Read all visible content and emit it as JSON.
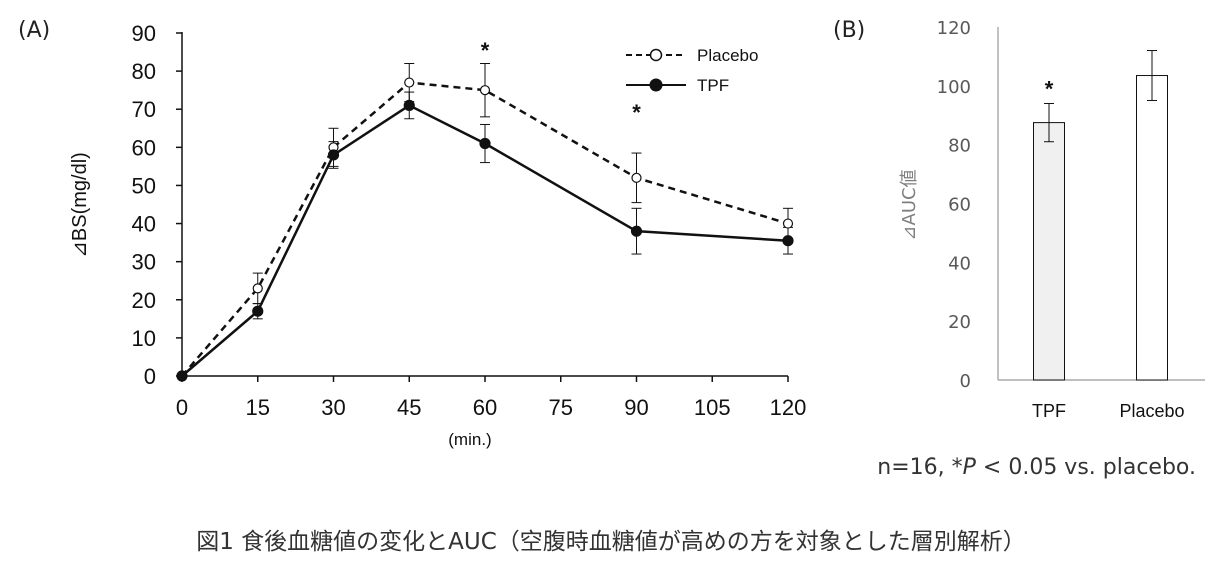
{
  "chart_data": [
    {
      "type": "line",
      "panel_label": "(A)",
      "ylabel": "⊿BS(mg/dl)",
      "xlabel": "(min.)",
      "x": [
        0,
        15,
        30,
        45,
        60,
        90,
        120
      ],
      "xticks": [
        "0",
        "15",
        "30",
        "45",
        "60",
        "75",
        "90",
        "105",
        "120"
      ],
      "xtick_values": [
        0,
        15,
        30,
        45,
        60,
        75,
        90,
        105,
        120
      ],
      "yticks": [
        "0",
        "10",
        "20",
        "30",
        "40",
        "50",
        "60",
        "70",
        "80",
        "90"
      ],
      "ylim": [
        0,
        90
      ],
      "xlim": [
        0,
        120
      ],
      "series": [
        {
          "name": "Placebo",
          "style": "dashed-open-circle",
          "values": [
            0,
            23,
            60,
            77,
            75,
            52,
            40
          ],
          "errors": [
            0,
            4,
            5,
            5,
            7,
            6.5,
            4
          ]
        },
        {
          "name": "TPF",
          "style": "solid-filled-circle",
          "values": [
            0,
            17,
            58,
            71,
            61,
            38,
            35.5
          ],
          "errors": [
            0,
            2,
            3.5,
            3.5,
            5,
            6,
            3.5
          ]
        }
      ],
      "significance": [
        {
          "x": 60,
          "mark": "*"
        },
        {
          "x": 90,
          "mark": "*"
        }
      ],
      "legend": [
        "Placebo",
        "TPF"
      ]
    },
    {
      "type": "bar",
      "panel_label": "(B)",
      "ylabel": "⊿AUC値",
      "categories": [
        "TPF",
        "Placebo"
      ],
      "values": [
        87.5,
        103.5
      ],
      "errors": [
        6.5,
        8.5
      ],
      "fills": [
        "#f0f0f0",
        "#ffffff"
      ],
      "yticks": [
        "0",
        "20",
        "40",
        "60",
        "80",
        "100",
        "120"
      ],
      "ylim": [
        0,
        120
      ],
      "significance": [
        {
          "category": "TPF",
          "mark": "*"
        }
      ]
    }
  ],
  "note": "n=16,  *P < 0.05 vs. placebo.",
  "note_parts": {
    "prefix": "n=16,  *",
    "p": "P",
    "suffix": " < 0.05 vs. placebo."
  },
  "caption": "図1 食後血糖値の変化とAUC（空腹時血糖値が高めの方を対象とした層別解析）"
}
